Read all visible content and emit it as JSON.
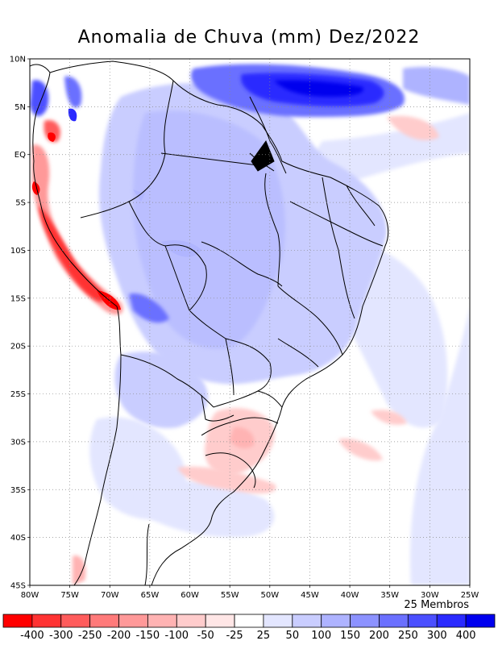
{
  "title": "Anomalia de Chuva (mm) Dez/2022",
  "members_label": "25 Membros",
  "map": {
    "lon_range": [
      -80,
      -25
    ],
    "lat_range": [
      -45,
      10
    ],
    "lat_ticks": [
      {
        "value": 10,
        "label": "10N"
      },
      {
        "value": 5,
        "label": "5N"
      },
      {
        "value": 0,
        "label": "EQ"
      },
      {
        "value": -5,
        "label": "5S"
      },
      {
        "value": -10,
        "label": "10S"
      },
      {
        "value": -15,
        "label": "15S"
      },
      {
        "value": -20,
        "label": "20S"
      },
      {
        "value": -25,
        "label": "25S"
      },
      {
        "value": -30,
        "label": "30S"
      },
      {
        "value": -35,
        "label": "35S"
      },
      {
        "value": -40,
        "label": "40S"
      },
      {
        "value": -45,
        "label": "45S"
      }
    ],
    "lon_ticks": [
      {
        "value": -80,
        "label": "80W"
      },
      {
        "value": -75,
        "label": "75W"
      },
      {
        "value": -70,
        "label": "70W"
      },
      {
        "value": -65,
        "label": "65W"
      },
      {
        "value": -60,
        "label": "60W"
      },
      {
        "value": -55,
        "label": "55W"
      },
      {
        "value": -50,
        "label": "50W"
      },
      {
        "value": -45,
        "label": "45W"
      },
      {
        "value": -40,
        "label": "40W"
      },
      {
        "value": -35,
        "label": "35W"
      },
      {
        "value": -30,
        "label": "30W"
      },
      {
        "value": -25,
        "label": "25W"
      }
    ]
  },
  "colorbar": {
    "labels": [
      "-400",
      "-300",
      "-250",
      "-200",
      "-150",
      "-100",
      "-50",
      "-25",
      "25",
      "50",
      "100",
      "150",
      "200",
      "250",
      "300",
      "400"
    ],
    "colors": [
      "#ff0000",
      "#ff3333",
      "#ff5c5c",
      "#ff7a7a",
      "#ff9999",
      "#ffb3b3",
      "#ffcccc",
      "#ffe6e6",
      "#ffffff",
      "#e3e6ff",
      "#c9cdff",
      "#aeb3ff",
      "#8c92ff",
      "#6b70ff",
      "#4b4fff",
      "#2a2aff",
      "#0000ee"
    ]
  }
}
